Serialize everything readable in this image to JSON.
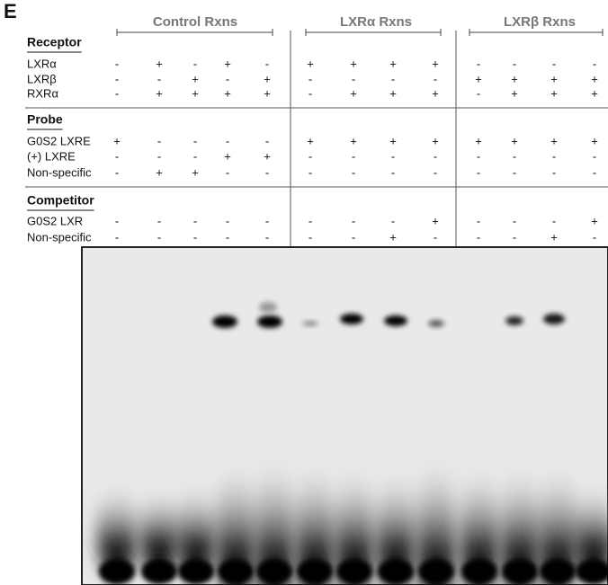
{
  "panel_label": "E",
  "groups": [
    {
      "label": "Control Rxns"
    },
    {
      "label": "LXRα Rxns"
    },
    {
      "label": "LXRβ Rxns"
    }
  ],
  "sections": [
    {
      "title": "Receptor",
      "rows": [
        {
          "label": "LXRα",
          "cells": [
            "-",
            "+",
            "-",
            "+",
            "-",
            "+",
            "+",
            "+",
            "+",
            "-",
            "-",
            "-",
            "-"
          ]
        },
        {
          "label": "LXRβ",
          "cells": [
            "-",
            "-",
            "+",
            "-",
            "+",
            "-",
            "-",
            "-",
            "-",
            "+",
            "+",
            "+",
            "+"
          ]
        },
        {
          "label": "RXRα",
          "cells": [
            "-",
            "+",
            "+",
            "+",
            "+",
            "-",
            "+",
            "+",
            "+",
            "-",
            "+",
            "+",
            "+"
          ]
        }
      ]
    },
    {
      "title": "Probe",
      "rows": [
        {
          "label": "G0S2 LXRE",
          "cells": [
            "+",
            "-",
            "-",
            "-",
            "-",
            "+",
            "+",
            "+",
            "+",
            "+",
            "+",
            "+",
            "+"
          ]
        },
        {
          "label": "(+) LXRE",
          "cells": [
            "-",
            "-",
            "-",
            "+",
            "+",
            "-",
            "-",
            "-",
            "-",
            "-",
            "-",
            "-",
            "-"
          ]
        },
        {
          "label": "Non-specific",
          "cells": [
            "-",
            "+",
            "+",
            "-",
            "-",
            "-",
            "-",
            "-",
            "-",
            "-",
            "-",
            "-",
            "-"
          ]
        }
      ]
    },
    {
      "title": "Competitor",
      "rows": [
        {
          "label": "G0S2 LXR",
          "cells": [
            "-",
            "-",
            "-",
            "-",
            "-",
            "-",
            "-",
            "-",
            "+",
            "-",
            "-",
            "-",
            "+"
          ]
        },
        {
          "label": "Non-specific",
          "cells": [
            "-",
            "-",
            "-",
            "-",
            "-",
            "-",
            "-",
            "+",
            "-",
            "-",
            "-",
            "+",
            "-"
          ]
        }
      ]
    }
  ]
}
